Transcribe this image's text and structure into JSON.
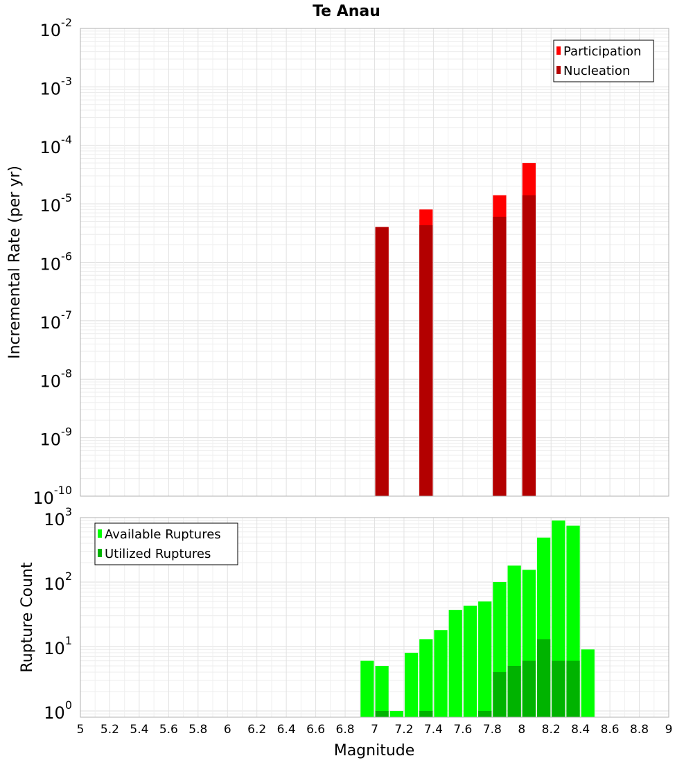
{
  "title": "Te Anau",
  "xlabel": "Magnitude",
  "chart_data": [
    {
      "type": "bar",
      "ylabel": "Incremental Rate (per yr)",
      "yscale": "log",
      "ylim": [
        1e-10,
        0.01
      ],
      "xlim": [
        5,
        9
      ],
      "bin_width": 0.1,
      "grid": true,
      "legend_position": "top-right",
      "y_ticks": [
        {
          "base": "10",
          "exp": "-10"
        },
        {
          "base": "10",
          "exp": "-9"
        },
        {
          "base": "10",
          "exp": "-8"
        },
        {
          "base": "10",
          "exp": "-7"
        },
        {
          "base": "10",
          "exp": "-6"
        },
        {
          "base": "10",
          "exp": "-5"
        },
        {
          "base": "10",
          "exp": "-4"
        },
        {
          "base": "10",
          "exp": "-3"
        },
        {
          "base": "10",
          "exp": "-2"
        }
      ],
      "series": [
        {
          "name": "Participation",
          "color": "#ff0000",
          "x": [
            7.05,
            7.35,
            7.85,
            8.05
          ],
          "values": [
            4e-06,
            8e-06,
            1.4e-05,
            5e-05
          ]
        },
        {
          "name": "Nucleation",
          "color": "#b30000",
          "x": [
            7.05,
            7.35,
            7.85,
            8.05
          ],
          "values": [
            4e-06,
            4.3e-06,
            6e-06,
            1.4e-05
          ]
        }
      ]
    },
    {
      "type": "bar",
      "ylabel": "Rupture Count",
      "yscale": "log",
      "ylim": [
        0.8,
        1000
      ],
      "xlim": [
        5,
        9
      ],
      "bin_width": 0.1,
      "grid": true,
      "legend_position": "top-left",
      "y_ticks": [
        {
          "base": "10",
          "exp": "0"
        },
        {
          "base": "10",
          "exp": "1"
        },
        {
          "base": "10",
          "exp": "2"
        },
        {
          "base": "10",
          "exp": "3"
        }
      ],
      "series": [
        {
          "name": "Available Ruptures",
          "color": "#00ff00",
          "x": [
            6.95,
            7.05,
            7.15,
            7.25,
            7.35,
            7.45,
            7.55,
            7.65,
            7.75,
            7.85,
            7.95,
            8.05,
            8.15,
            8.25,
            8.35,
            8.45
          ],
          "values": [
            6,
            5,
            1,
            8,
            13,
            18,
            37,
            43,
            50,
            100,
            180,
            155,
            490,
            900,
            750,
            9
          ]
        },
        {
          "name": "Utilized Ruptures",
          "color": "#00b300",
          "x": [
            7.05,
            7.35,
            7.75,
            7.85,
            7.95,
            8.05,
            8.15,
            8.25,
            8.35
          ],
          "values": [
            1,
            1,
            1,
            4,
            5,
            6,
            13,
            6,
            6
          ]
        }
      ]
    }
  ],
  "x_ticks": [
    "5",
    "5.2",
    "5.4",
    "5.6",
    "5.8",
    "6",
    "6.2",
    "6.4",
    "6.6",
    "6.8",
    "7",
    "7.2",
    "7.4",
    "7.6",
    "7.8",
    "8",
    "8.2",
    "8.4",
    "8.6",
    "8.8",
    "9"
  ]
}
